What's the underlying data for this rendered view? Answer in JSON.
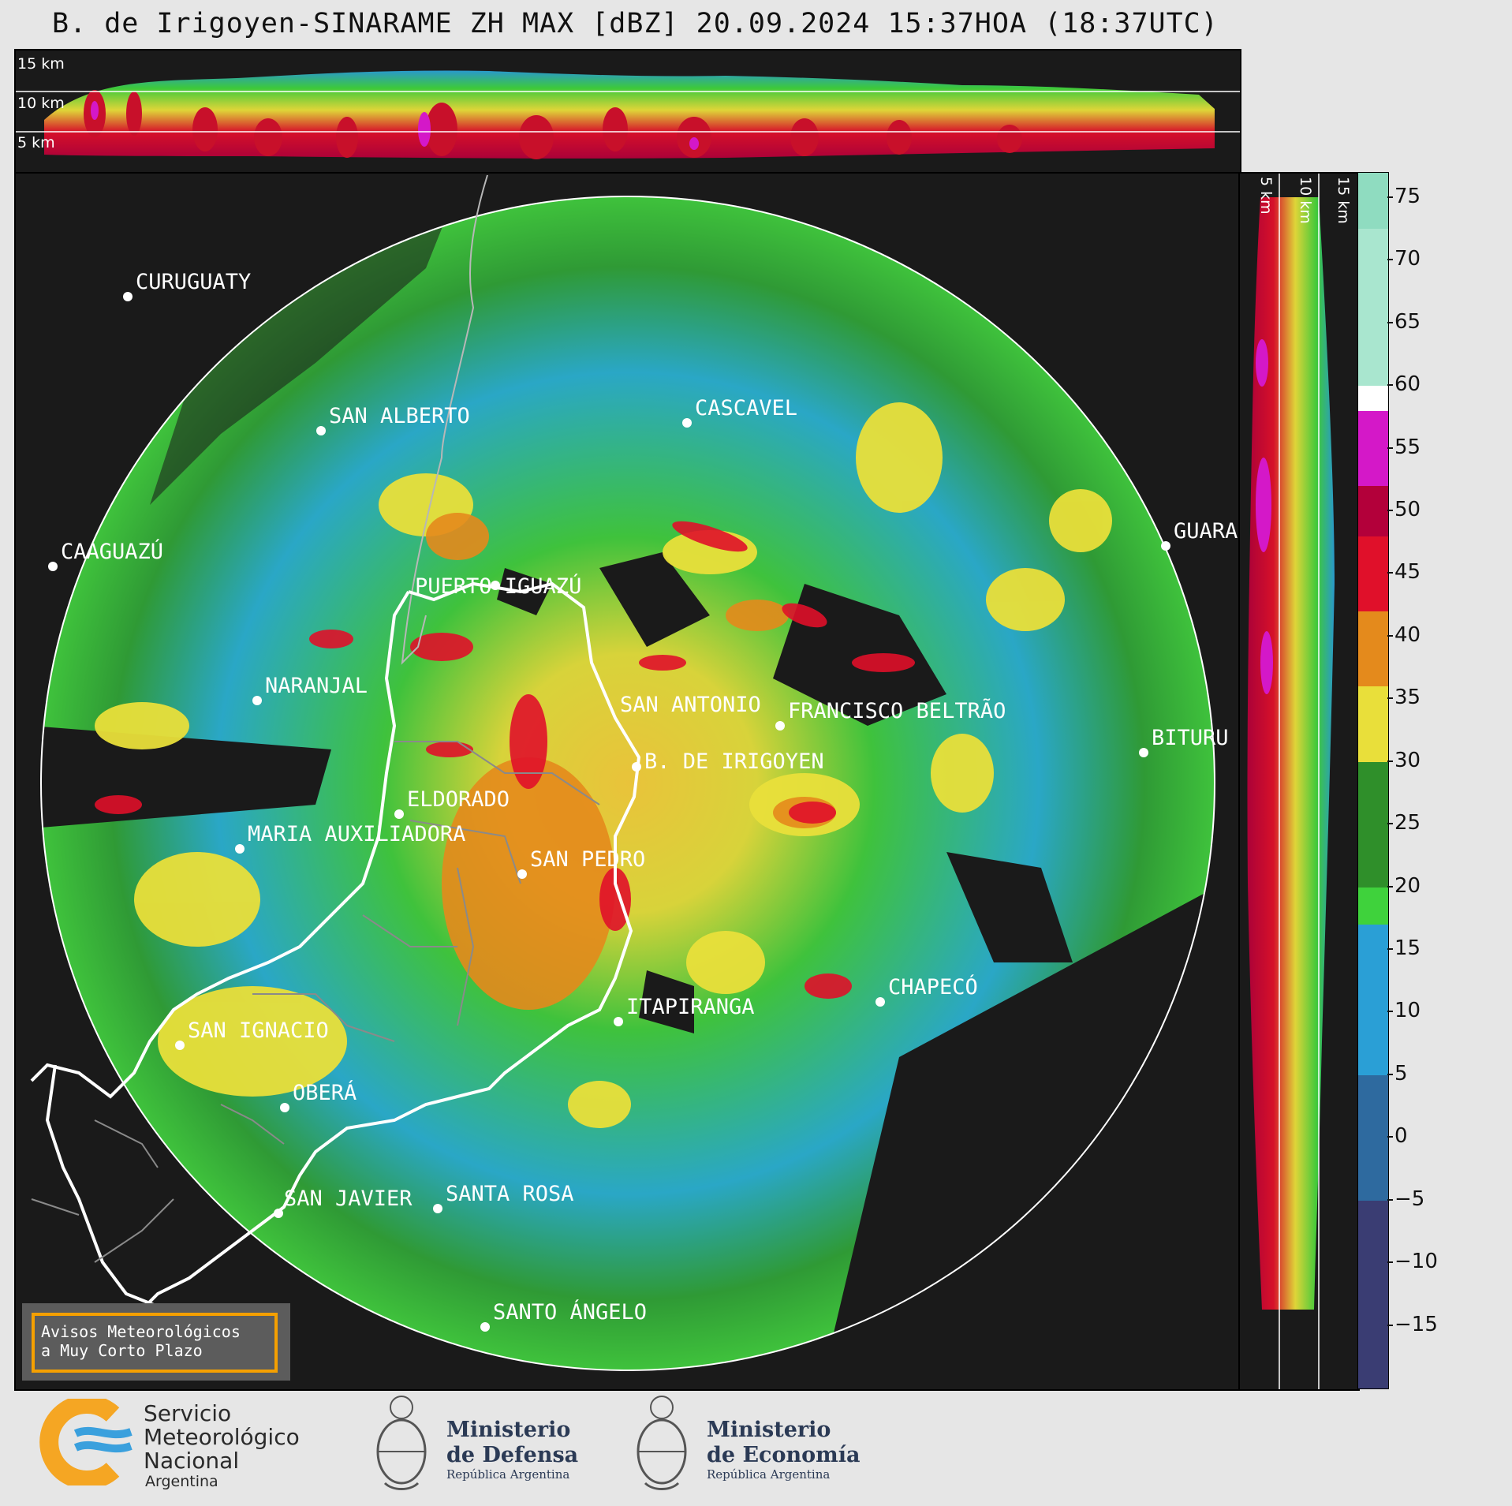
{
  "title": "B. de Irigoyen-SINARAME ZH MAX [dBZ] 20.09.2024 15:37HOA (18:37UTC)",
  "ew_profile": {
    "height_labels": [
      "15 km",
      "10 km",
      "5 km"
    ]
  },
  "ns_profile": {
    "height_labels": [
      "5 km",
      "10 km",
      "15 km"
    ]
  },
  "cities": [
    {
      "name": "CURUGUATY"
    },
    {
      "name": "SAN ALBERTO"
    },
    {
      "name": "CASCAVEL"
    },
    {
      "name": "CAAGUAZÚ"
    },
    {
      "name": "GUARA"
    },
    {
      "name": "PUERTO IGUAZÚ"
    },
    {
      "name": "NARANJAL"
    },
    {
      "name": "SAN ANTONIO"
    },
    {
      "name": "FRANCISCO BELTRÃO"
    },
    {
      "name": "BITURU"
    },
    {
      "name": "B. DE IRIGOYEN"
    },
    {
      "name": "ELDORADO"
    },
    {
      "name": "MARIA AUXILIADORA"
    },
    {
      "name": "SAN PEDRO"
    },
    {
      "name": "CHAPECÓ"
    },
    {
      "name": "ITAPIRANGA"
    },
    {
      "name": "SAN IGNACIO"
    },
    {
      "name": "OBERÁ"
    },
    {
      "name": "SAN JAVIER"
    },
    {
      "name": "SANTA ROSA"
    },
    {
      "name": "SANTO ÁNGELO"
    }
  ],
  "colorbar": {
    "unit": "dBZ",
    "ticks": [
      "75",
      "70",
      "65",
      "60",
      "55",
      "50",
      "45",
      "40",
      "35",
      "30",
      "25",
      "20",
      "15",
      "10",
      "5",
      "0",
      "−5",
      "−10",
      "−15"
    ],
    "bands": [
      {
        "from": 72.5,
        "to": 77,
        "color": "#8fdcc0"
      },
      {
        "from": 60,
        "to": 72.5,
        "color": "#a9e6cf"
      },
      {
        "from": 58,
        "to": 60,
        "color": "#ffffff"
      },
      {
        "from": 52,
        "to": 58,
        "color": "#d418c8"
      },
      {
        "from": 48,
        "to": 52,
        "color": "#b3003a"
      },
      {
        "from": 42,
        "to": 48,
        "color": "#e0102a"
      },
      {
        "from": 36,
        "to": 42,
        "color": "#e48a1c"
      },
      {
        "from": 30,
        "to": 36,
        "color": "#e9df3a"
      },
      {
        "from": 20,
        "to": 30,
        "color": "#2f8f2a"
      },
      {
        "from": 17,
        "to": 20,
        "color": "#3fd23c"
      },
      {
        "from": 5,
        "to": 17,
        "color": "#2a9fd6"
      },
      {
        "from": -5,
        "to": 5,
        "color": "#2e6a9f"
      },
      {
        "from": -20,
        "to": -5,
        "color": "#3a3d73"
      }
    ]
  },
  "warning_box": {
    "line1": "Avisos Meteorológicos",
    "line2": "a Muy Corto Plazo"
  },
  "logos": {
    "smn": {
      "line1": "Servicio",
      "line2": "Meteorológico",
      "line3": "Nacional",
      "line4": "Argentina"
    },
    "defensa": {
      "line1": "Ministerio",
      "line2": "de Defensa",
      "line3": "República Argentina"
    },
    "economia": {
      "line1": "Ministerio",
      "line2": "de Economía",
      "line3": "República Argentina"
    }
  }
}
